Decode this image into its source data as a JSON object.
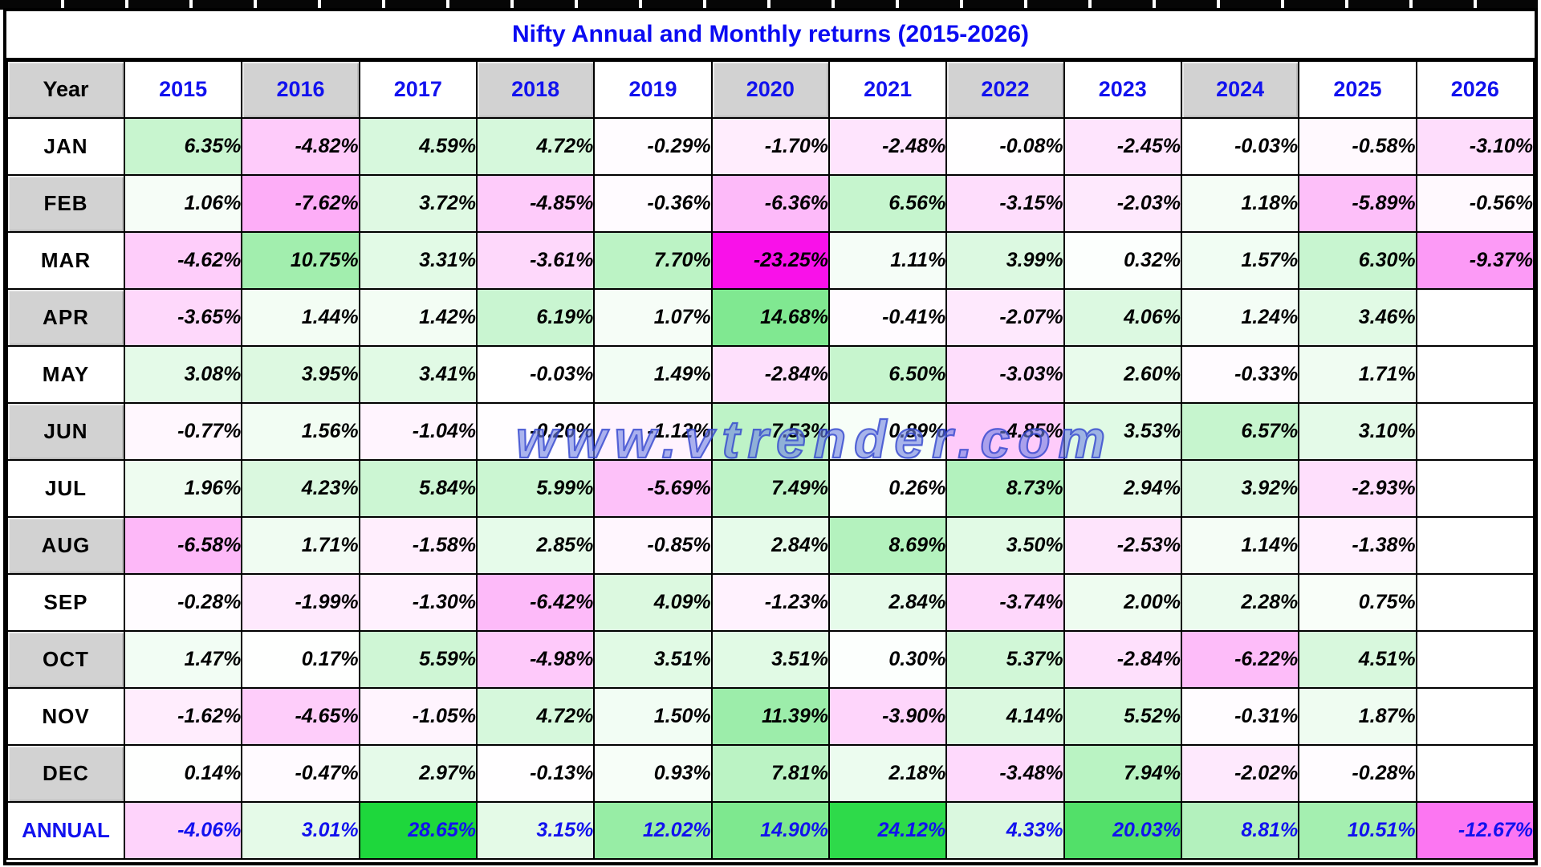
{
  "title_blue": "#0b0bf2",
  "watermark": "www.vtrender.com",
  "chart_data": {
    "type": "heatmap",
    "title": "Nifty Annual and Monthly returns (2015-2026)",
    "unit": "%",
    "columns": [
      "2015",
      "2016",
      "2017",
      "2018",
      "2019",
      "2020",
      "2021",
      "2022",
      "2023",
      "2024",
      "2025",
      "2026"
    ],
    "rows": [
      "JAN",
      "FEB",
      "MAR",
      "APR",
      "MAY",
      "JUN",
      "JUL",
      "AUG",
      "SEP",
      "OCT",
      "NOV",
      "DEC",
      "ANNUAL"
    ],
    "values_pct": [
      [
        6.35,
        -4.82,
        4.59,
        4.72,
        -0.29,
        -1.7,
        -2.48,
        -0.08,
        -2.45,
        -0.03,
        -0.58,
        -3.1
      ],
      [
        1.06,
        -7.62,
        3.72,
        -4.85,
        -0.36,
        -6.36,
        6.56,
        -3.15,
        -2.03,
        1.18,
        -5.89,
        -0.56
      ],
      [
        -4.62,
        10.75,
        3.31,
        -3.61,
        7.7,
        -23.25,
        1.11,
        3.99,
        0.32,
        1.57,
        6.3,
        -9.37
      ],
      [
        -3.65,
        1.44,
        1.42,
        6.19,
        1.07,
        14.68,
        -0.41,
        -2.07,
        4.06,
        1.24,
        3.46,
        null
      ],
      [
        3.08,
        3.95,
        3.41,
        -0.03,
        1.49,
        -2.84,
        6.5,
        -3.03,
        2.6,
        -0.33,
        1.71,
        null
      ],
      [
        -0.77,
        1.56,
        -1.04,
        -0.2,
        -1.12,
        7.53,
        0.89,
        -4.85,
        3.53,
        6.57,
        3.1,
        null
      ],
      [
        1.96,
        4.23,
        5.84,
        5.99,
        -5.69,
        7.49,
        0.26,
        8.73,
        2.94,
        3.92,
        -2.93,
        null
      ],
      [
        -6.58,
        1.71,
        -1.58,
        2.85,
        -0.85,
        2.84,
        8.69,
        3.5,
        -2.53,
        1.14,
        -1.38,
        null
      ],
      [
        -0.28,
        -1.99,
        -1.3,
        -6.42,
        4.09,
        -1.23,
        2.84,
        -3.74,
        2.0,
        2.28,
        0.75,
        null
      ],
      [
        1.47,
        0.17,
        5.59,
        -4.98,
        3.51,
        3.51,
        0.3,
        5.37,
        -2.84,
        -6.22,
        4.51,
        null
      ],
      [
        -1.62,
        -4.65,
        -1.05,
        4.72,
        1.5,
        11.39,
        -3.9,
        4.14,
        5.52,
        -0.31,
        1.87,
        null
      ],
      [
        0.14,
        -0.47,
        2.97,
        -0.13,
        0.93,
        7.81,
        2.18,
        -3.48,
        7.94,
        -2.02,
        -0.28,
        null
      ],
      [
        -4.06,
        3.01,
        28.65,
        3.15,
        12.02,
        14.9,
        24.12,
        4.33,
        20.03,
        8.81,
        10.51,
        -12.67
      ]
    ]
  },
  "table": {
    "corner_label": "Year",
    "shaded_year_indices": [
      1,
      3,
      5,
      7,
      9
    ],
    "shaded_row_indices": [
      1,
      3,
      5,
      7,
      9,
      11
    ],
    "annual_row_index": 12
  },
  "colors": {
    "title_text": "#0b0bf2",
    "year_header_text": "#1212ee",
    "annual_text": "#1212ee",
    "header_gray": "#d2d2d2",
    "grid_black": "#000000",
    "max_green": "#1ed73c",
    "max_magenta": "#f911e9",
    "watermark_blue": "#3042cd"
  }
}
